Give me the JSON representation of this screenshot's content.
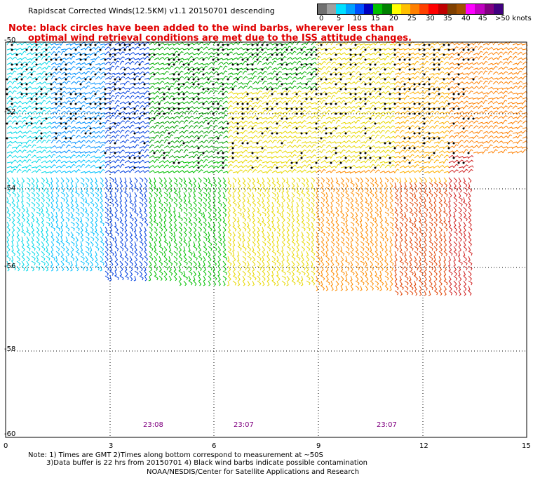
{
  "title": "Rapidscat Corrected Winds(12.5KM) v1.1 20150701 descending",
  "note_line1": "Note: black circles have been added to the wind barbs, wherever less than",
  "note_line2": "optimal wind retrieval conditions are met due to the ISS attitude changes.",
  "colorbar": {
    "colors": [
      "#707070",
      "#a0a0a0",
      "#00e0ff",
      "#00a0ff",
      "#0050ff",
      "#0000c0",
      "#00c000",
      "#008000",
      "#ffff00",
      "#ffc000",
      "#ff8000",
      "#ff4000",
      "#ff0000",
      "#c00000",
      "#804000",
      "#a05000",
      "#ff00ff",
      "#c000c0",
      "#800080",
      "#400080"
    ],
    "labels": [
      "0",
      "5",
      "10",
      "15",
      "20",
      "25",
      "30",
      "35",
      "40",
      "45",
      ">50 knots"
    ],
    "colors_note": "20 segments"
  },
  "x_axis": {
    "ticks": [
      "0",
      "3",
      "6",
      "9",
      "12",
      "15"
    ]
  },
  "y_axis": {
    "ticks": [
      "-50",
      "-52",
      "-54",
      "-56",
      "-58",
      "-60"
    ]
  },
  "times": [
    "23:08",
    "23:07",
    "23:07"
  ],
  "footer": {
    "line1": "Note: 1) Times are GMT 2)Times along bottom correspond to measurement at ~50S",
    "line2": "3)Data buffer is 22 hrs from 20150701 4) Black wind barbs indicate possible contamination",
    "line3": "NOAA/NESDIS/Center for Satellite Applications and Research"
  },
  "map_region": {
    "lon_range": [
      0,
      15
    ],
    "lat_range": [
      -60,
      -50
    ],
    "wind_speed_units": "knots"
  }
}
